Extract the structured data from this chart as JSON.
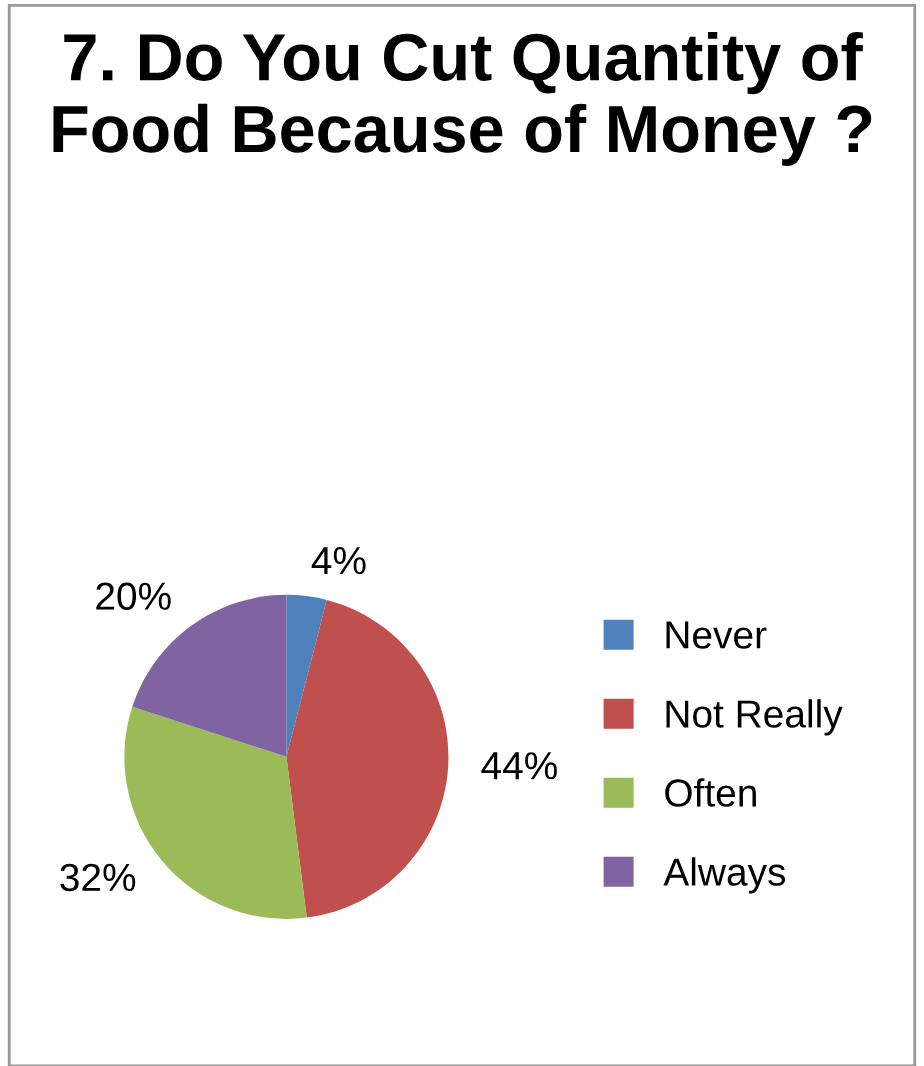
{
  "chart_data": {
    "type": "pie",
    "title": "7. Do You Cut Quantity of Food Because of Money ?",
    "categories": [
      "Never",
      "Not Really",
      "Often",
      "Always"
    ],
    "values": [
      4,
      44,
      32,
      20
    ],
    "colors": [
      "#4f81bd",
      "#c0504d",
      "#9bbb59",
      "#8064a2"
    ],
    "value_labels": [
      "4%",
      "44%",
      "32%",
      "20%"
    ],
    "legend": "right"
  }
}
